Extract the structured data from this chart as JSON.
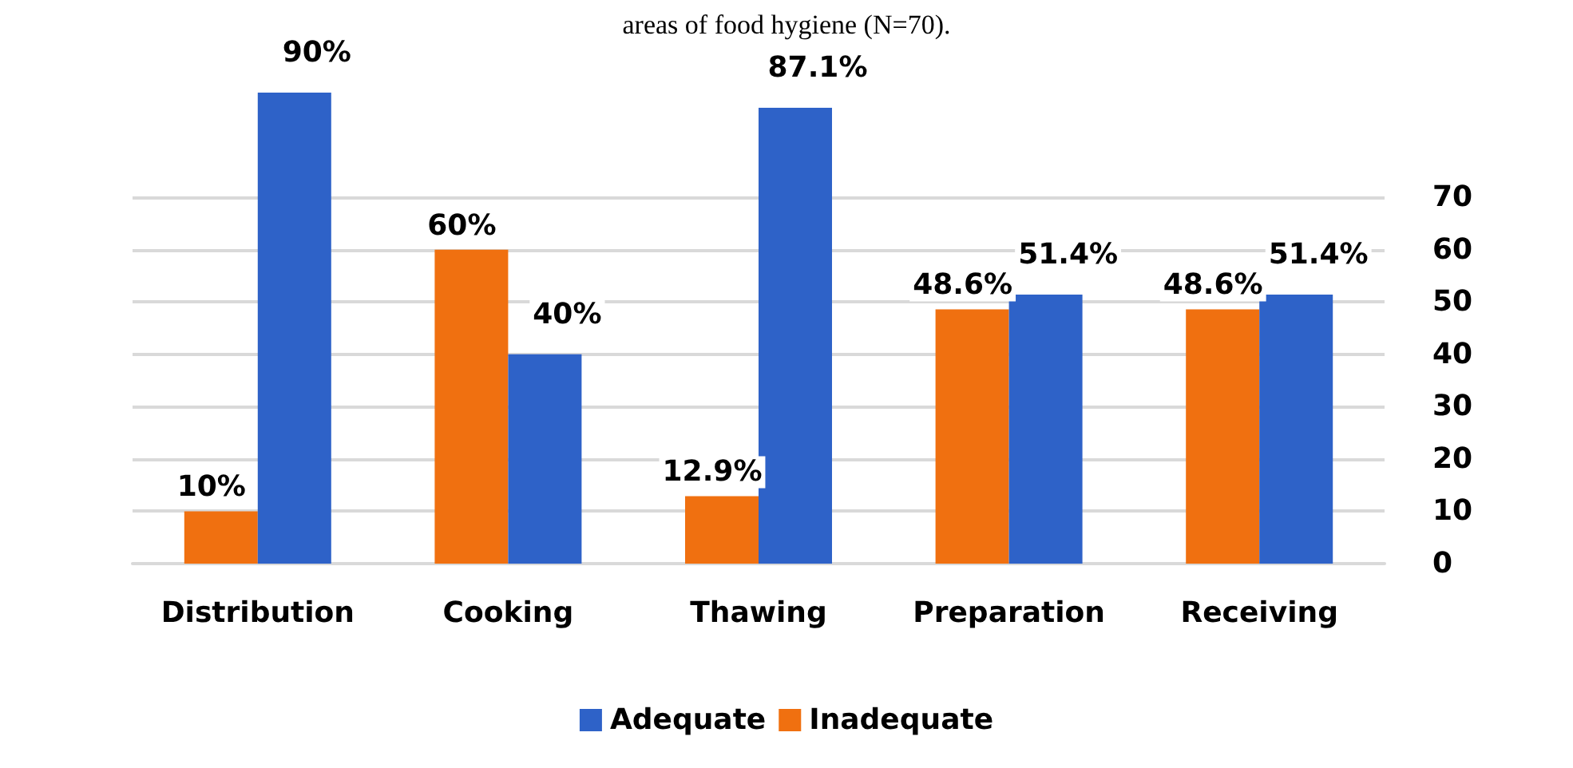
{
  "chart_data": {
    "type": "bar",
    "title": "areas of food hygiene (N=70).",
    "categories": [
      "Distribution",
      "Cooking",
      "Thawing",
      "Preparation",
      "Receiving"
    ],
    "series": [
      {
        "name": "Inadequate",
        "color": "#f07010",
        "values": [
          10,
          60,
          12.9,
          48.6,
          48.6
        ],
        "value_labels": [
          "10%",
          "60%",
          "12.9%",
          "48.6%",
          "48.6%"
        ]
      },
      {
        "name": "Adequate",
        "color": "#2e62c8",
        "values": [
          90,
          40,
          87.1,
          51.4,
          51.4
        ],
        "value_labels": [
          "90%",
          "40%",
          "87.1%",
          "51.4%",
          "51.4%"
        ]
      }
    ],
    "ylim": [
      0,
      90
    ],
    "yticks": [
      0,
      10,
      20,
      30,
      40,
      50,
      60,
      70
    ],
    "grid": "y",
    "legend": "bottom"
  }
}
